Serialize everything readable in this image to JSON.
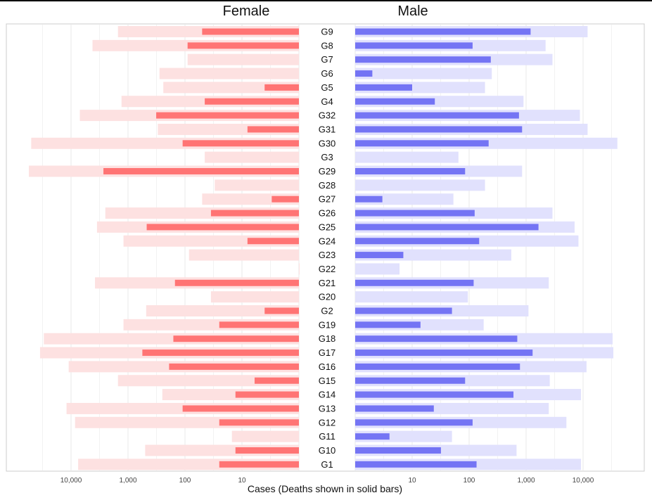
{
  "chart_data": {
    "type": "bar",
    "orientation": "horizontal",
    "layout": "back-to-back (female left, male right), log scale",
    "panels": [
      "Female",
      "Male"
    ],
    "xlabel": "Cases (Deaths shown in solid bars)",
    "x_scale": "log10",
    "x_ticks": [
      10,
      100,
      1000,
      10000
    ],
    "x_tick_labels": [
      "10",
      "100",
      "1,000",
      "10,000"
    ],
    "grid": true,
    "categories": [
      "G9",
      "G8",
      "G7",
      "G6",
      "G5",
      "G4",
      "G32",
      "G31",
      "G30",
      "G3",
      "G29",
      "G28",
      "G27",
      "G26",
      "G25",
      "G24",
      "G23",
      "G22",
      "G21",
      "G20",
      "G2",
      "G19",
      "G18",
      "G17",
      "G16",
      "G15",
      "G14",
      "G13",
      "G12",
      "G11",
      "G10",
      "G1"
    ],
    "series": [
      {
        "name": "Cases",
        "group": "Female",
        "style": "light",
        "values": [
          1500,
          4200,
          90,
          280,
          240,
          1300,
          7000,
          300,
          50000,
          45,
          55000,
          30,
          50,
          2500,
          3500,
          1200,
          85,
          1,
          3800,
          35,
          480,
          1200,
          30000,
          35000,
          11000,
          1500,
          250,
          12000,
          8500,
          15,
          500,
          7500
        ]
      },
      {
        "name": "Deaths",
        "group": "Female",
        "style": "solid",
        "values": [
          50,
          90,
          0,
          0,
          4,
          45,
          320,
          8,
          110,
          0,
          2700,
          0,
          3,
          35,
          470,
          8,
          0,
          0,
          150,
          0,
          4,
          25,
          160,
          560,
          190,
          6,
          13,
          110,
          25,
          0,
          13,
          25
        ]
      },
      {
        "name": "Cases",
        "group": "Male",
        "style": "light",
        "values": [
          12000,
          2200,
          2900,
          250,
          190,
          900,
          8800,
          12000,
          40000,
          65,
          850,
          190,
          53,
          2900,
          7100,
          8300,
          550,
          6,
          2500,
          95,
          1100,
          180,
          33000,
          34000,
          11500,
          2600,
          9200,
          2500,
          5100,
          50,
          680,
          9200
        ]
      },
      {
        "name": "Deaths",
        "group": "Male",
        "style": "solid",
        "values": [
          1200,
          115,
          240,
          2,
          10,
          25,
          750,
          850,
          220,
          0,
          85,
          0,
          3,
          125,
          1650,
          150,
          7,
          0,
          120,
          0,
          50,
          14,
          700,
          1300,
          780,
          85,
          600,
          24,
          115,
          4,
          32,
          135
        ]
      }
    ],
    "colors": {
      "female_cases": "#fde1e1",
      "female_deaths": "#ff7474",
      "male_cases": "#e1e1fd",
      "male_deaths": "#7474f4"
    }
  }
}
